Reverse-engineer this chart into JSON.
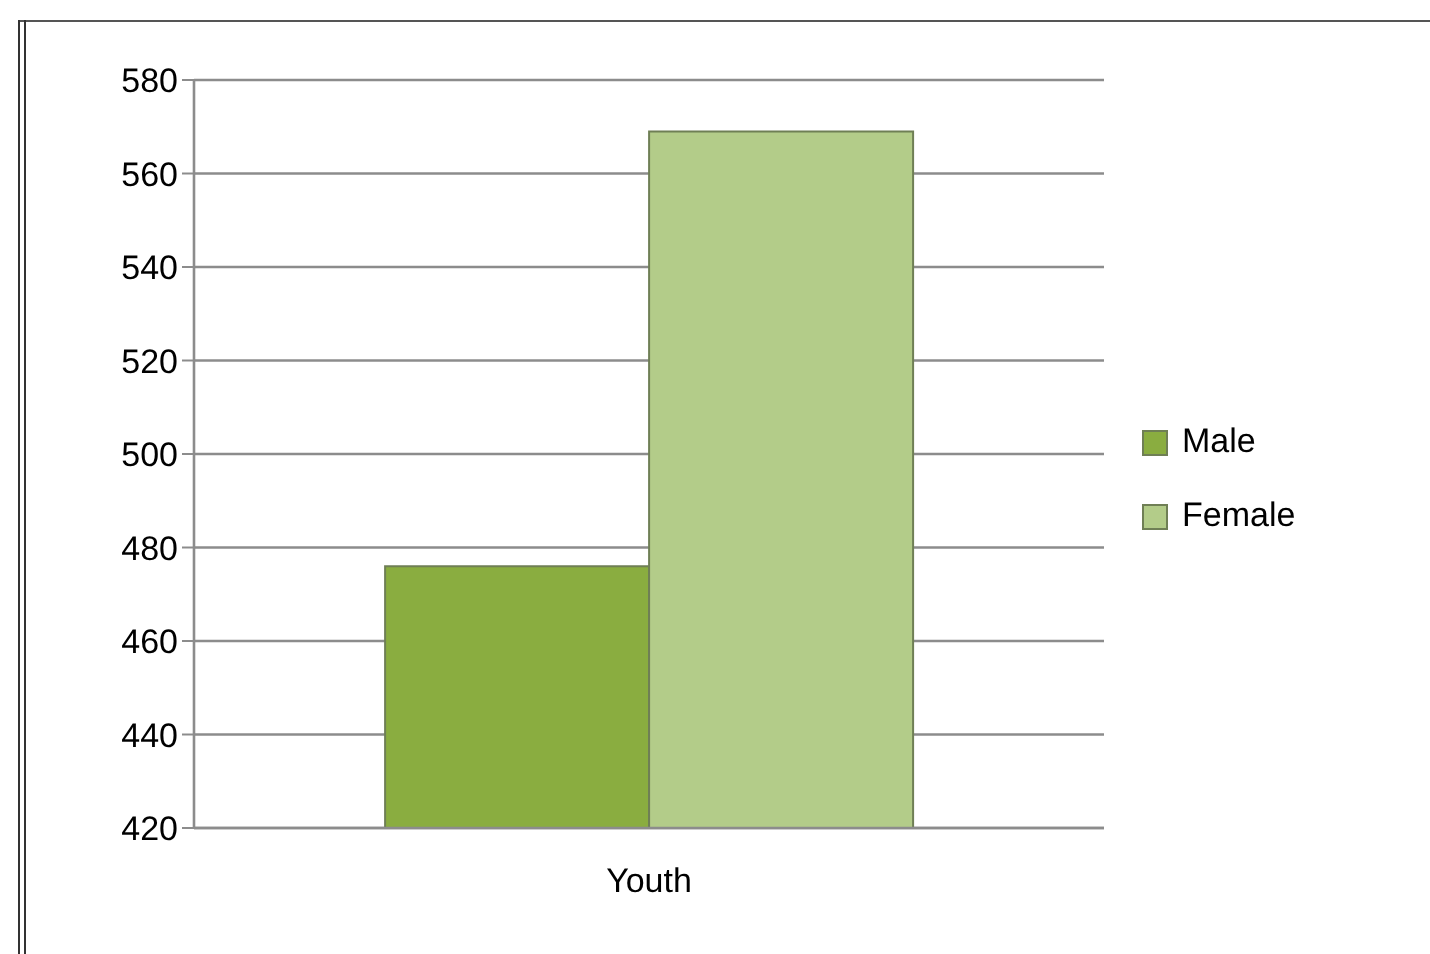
{
  "chart_data": {
    "type": "bar",
    "categories": [
      "Youth"
    ],
    "series": [
      {
        "name": "Male",
        "color": "#8aad40",
        "values": [
          476
        ]
      },
      {
        "name": "Female",
        "color": "#b3cc89",
        "values": [
          569
        ]
      }
    ],
    "ylim": [
      420,
      580
    ],
    "yticks": [
      420,
      440,
      460,
      480,
      500,
      520,
      540,
      560,
      580
    ],
    "grid": "y",
    "legend": "right"
  }
}
